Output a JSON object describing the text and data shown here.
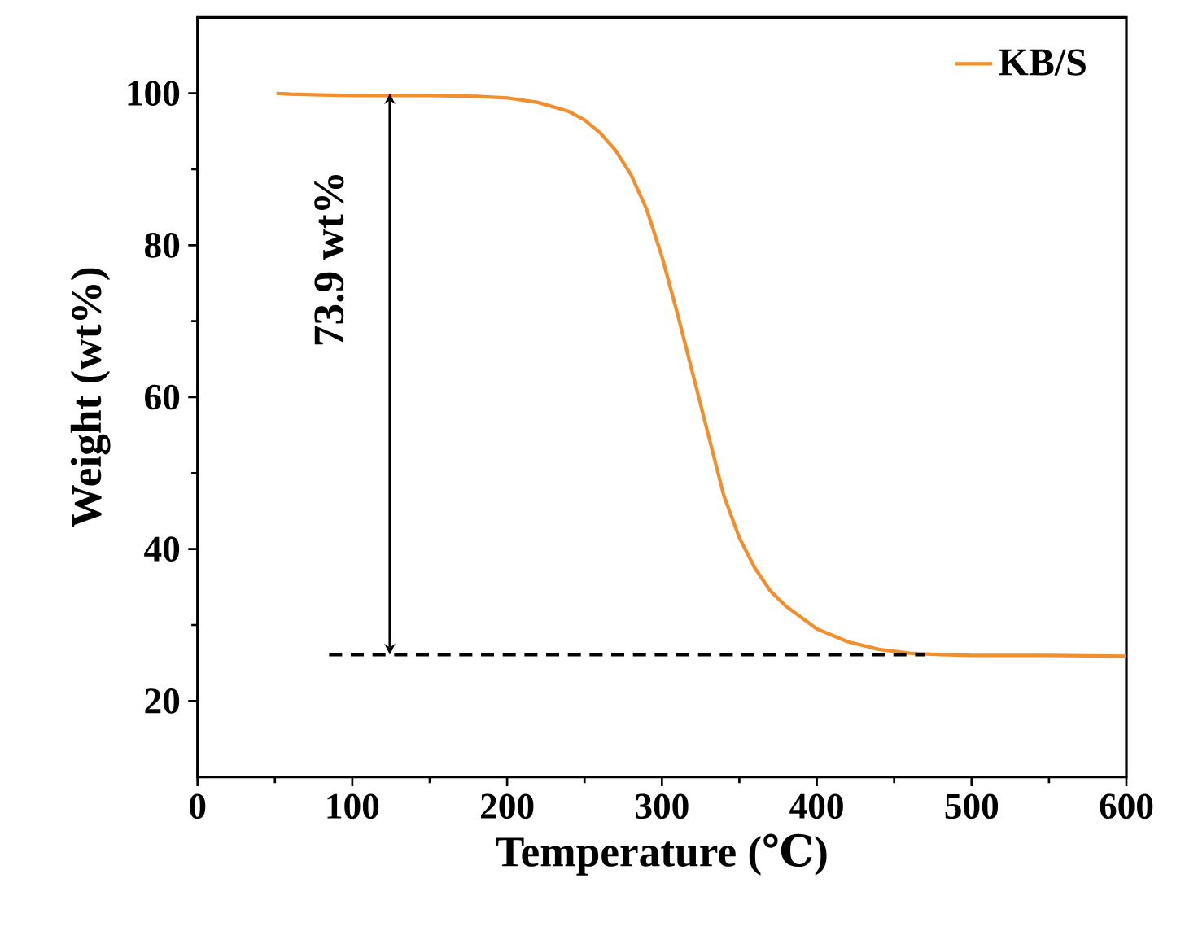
{
  "chart_data": {
    "type": "line",
    "xlabel": "Temperature (℃)",
    "ylabel": "Weight (wt%)",
    "xlim": [
      0,
      600
    ],
    "ylim": [
      10,
      110
    ],
    "xticks": [
      0,
      100,
      200,
      300,
      400,
      500,
      600
    ],
    "yticks": [
      20,
      40,
      60,
      80,
      100
    ],
    "legend": "top right",
    "grid": false,
    "marker": "none",
    "series": [
      {
        "name": "KB/S",
        "color": "#f28e2b",
        "line_style": "solid",
        "x": [
          51,
          60,
          80,
          100,
          120,
          150,
          180,
          200,
          220,
          240,
          250,
          260,
          270,
          280,
          290,
          300,
          310,
          320,
          330,
          340,
          350,
          360,
          370,
          380,
          400,
          420,
          440,
          460,
          480,
          500,
          550,
          600
        ],
        "values": [
          100,
          99.9,
          99.8,
          99.7,
          99.7,
          99.7,
          99.6,
          99.4,
          98.8,
          97.6,
          96.5,
          94.8,
          92.5,
          89.3,
          84.8,
          78.5,
          71,
          63,
          55,
          47,
          41.5,
          37.5,
          34.5,
          32.5,
          29.5,
          27.8,
          26.8,
          26.3,
          26.1,
          26,
          26,
          25.9
        ]
      },
      {
        "color": "#000000",
        "line_style": "dashed",
        "x": [
          85,
          470
        ],
        "values": [
          26.1,
          26.1
        ]
      }
    ],
    "annotations": [
      "73.9 wt%"
    ]
  }
}
